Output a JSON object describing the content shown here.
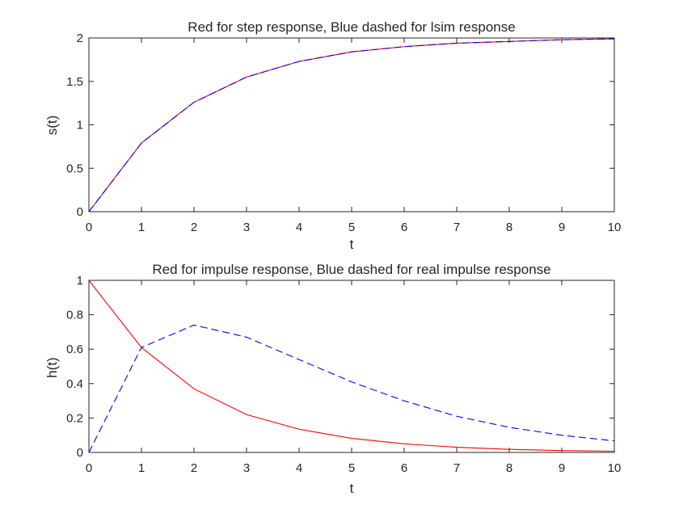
{
  "colors": {
    "red": "#ff0000",
    "blue": "#0000ff",
    "axis": "#262626",
    "background": "#ffffff"
  },
  "chart_data": [
    {
      "type": "line",
      "title": "Red for step response, Blue dashed for lsim response",
      "xlabel": "t",
      "ylabel": "s(t)",
      "xlim": [
        0,
        10
      ],
      "ylim": [
        0,
        2
      ],
      "xticks": [
        "0",
        "1",
        "2",
        "3",
        "4",
        "5",
        "6",
        "7",
        "8",
        "9",
        "10"
      ],
      "yticks": [
        "0",
        "0.5",
        "1",
        "1.5",
        "2"
      ],
      "grid": false,
      "x": [
        0,
        1,
        2,
        3,
        4,
        5,
        6,
        7,
        8,
        9,
        10
      ],
      "series": [
        {
          "color": "#ff0000",
          "style": "solid",
          "values": [
            0,
            0.79,
            1.26,
            1.55,
            1.73,
            1.84,
            1.9,
            1.94,
            1.96,
            1.98,
            1.99
          ]
        },
        {
          "color": "#0000ff",
          "style": "dashed",
          "values": [
            0,
            0.79,
            1.26,
            1.55,
            1.73,
            1.84,
            1.9,
            1.94,
            1.96,
            1.98,
            1.99
          ]
        }
      ]
    },
    {
      "type": "line",
      "title": "Red for impulse response, Blue dashed for real impulse response",
      "xlabel": "t",
      "ylabel": "h(t)",
      "xlim": [
        0,
        10
      ],
      "ylim": [
        0,
        1
      ],
      "xticks": [
        "0",
        "1",
        "2",
        "3",
        "4",
        "5",
        "6",
        "7",
        "8",
        "9",
        "10"
      ],
      "yticks": [
        "0",
        "0.2",
        "0.4",
        "0.6",
        "0.8",
        "1"
      ],
      "grid": false,
      "x": [
        0,
        1,
        2,
        3,
        4,
        5,
        6,
        7,
        8,
        9,
        10
      ],
      "series": [
        {
          "color": "#ff0000",
          "style": "solid",
          "values": [
            1,
            0.61,
            0.37,
            0.22,
            0.135,
            0.082,
            0.05,
            0.03,
            0.018,
            0.011,
            0.007
          ]
        },
        {
          "color": "#0000ff",
          "style": "dashed",
          "values": [
            0,
            0.61,
            0.74,
            0.67,
            0.54,
            0.41,
            0.3,
            0.21,
            0.146,
            0.1,
            0.067
          ]
        }
      ]
    }
  ]
}
